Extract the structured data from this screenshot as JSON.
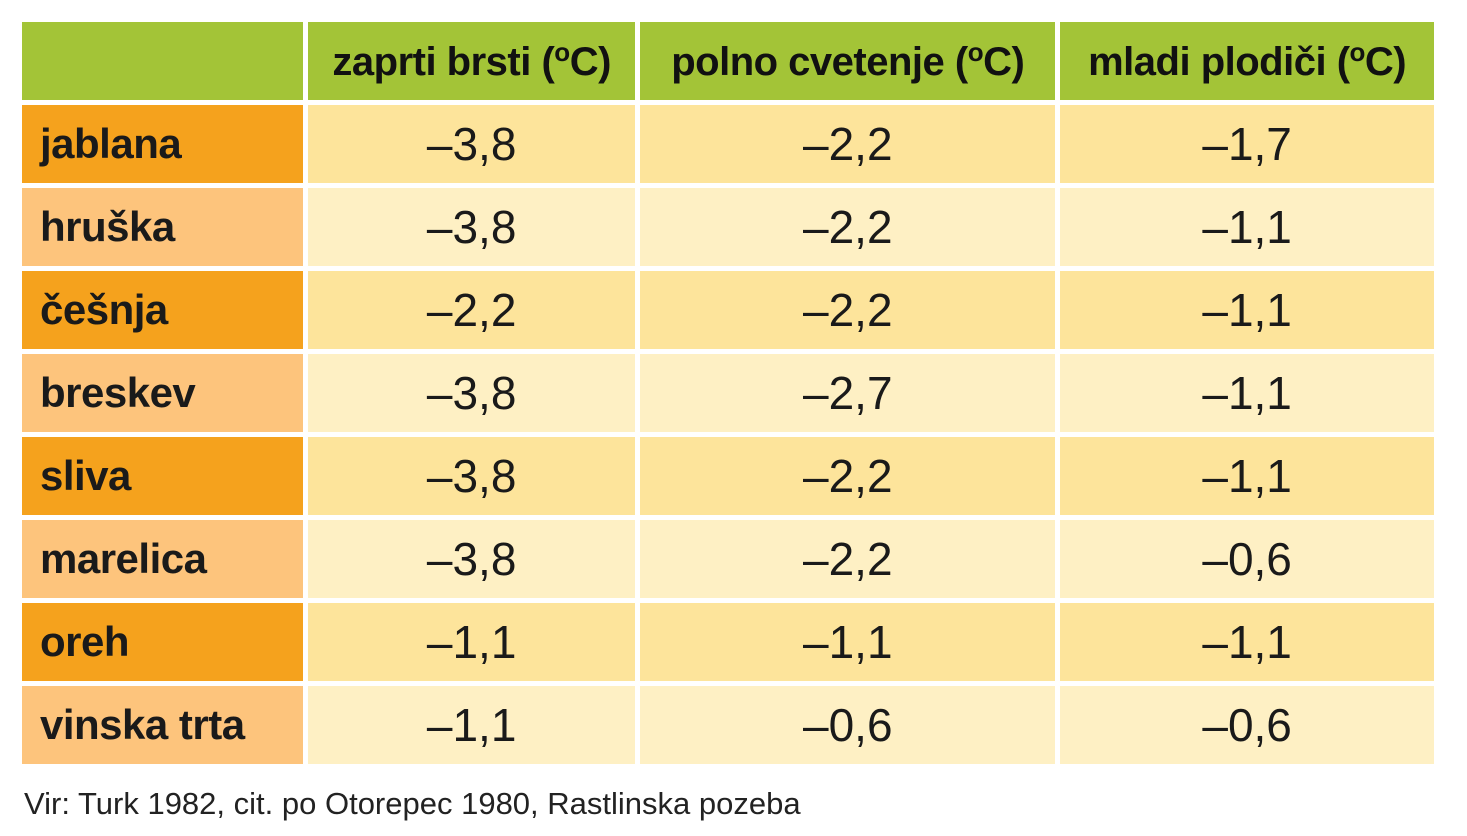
{
  "table": {
    "headers": [
      {
        "text": "zaprti brsti (",
        "sup": "o",
        "tail": "C)"
      },
      {
        "text": "polno cvetenje (",
        "sup": "o",
        "tail": "C)"
      },
      {
        "text": "mladi plodiči (",
        "sup": "o",
        "tail": "C)"
      }
    ],
    "rows": [
      {
        "label": "jablana",
        "values": [
          "–3,8",
          "–2,2",
          "–1,7"
        ]
      },
      {
        "label": "hruška",
        "values": [
          "–3,8",
          "–2,2",
          "–1,1"
        ]
      },
      {
        "label": "češnja",
        "values": [
          "–2,2",
          "–2,2",
          "–1,1"
        ]
      },
      {
        "label": "breskev",
        "values": [
          "–3,8",
          "–2,7",
          "–1,1"
        ]
      },
      {
        "label": "sliva",
        "values": [
          "–3,8",
          "–2,2",
          "–1,1"
        ]
      },
      {
        "label": "marelica",
        "values": [
          "–3,8",
          "–2,2",
          "–0,6"
        ]
      },
      {
        "label": "oreh",
        "values": [
          "–1,1",
          "–1,1",
          "–1,1"
        ]
      },
      {
        "label": "vinska trta",
        "values": [
          "–1,1",
          "–0,6",
          "–0,6"
        ]
      }
    ]
  },
  "source": "Vir: Turk 1982, cit. po Otorepec 1980, Rastlinska pozeba",
  "colors": {
    "header": "#a3c437",
    "label_dark": "#f5a21d",
    "label_light": "#fdc47c",
    "cell_dark": "#fde49b",
    "cell_light": "#fef0c4"
  }
}
